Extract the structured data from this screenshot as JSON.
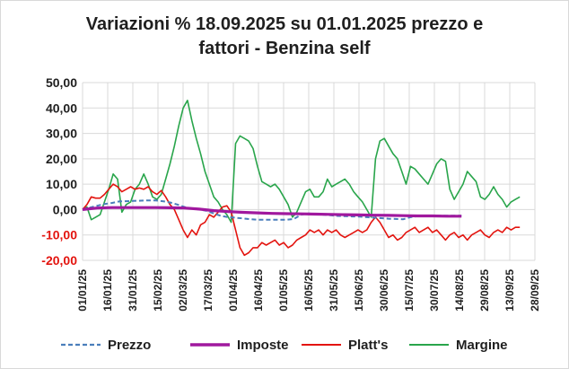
{
  "chart_data": {
    "type": "line",
    "title_line1": "Variazioni % 18.09.2025 su 01.01.2025 prezzo e",
    "title_line2": "fattori - Benzina self",
    "xlabel": "",
    "ylabel": "",
    "ylim": [
      -20,
      50
    ],
    "y_ticks": [
      "50,00",
      "40,00",
      "30,00",
      "20,00",
      "10,00",
      "0,00",
      "-10,00",
      "-20,00"
    ],
    "x_ticks": [
      "01/01/25",
      "16/01/25",
      "31/01/25",
      "15/02/25",
      "02/03/25",
      "17/03/25",
      "01/04/25",
      "16/04/25",
      "01/05/25",
      "16/05/25",
      "31/05/25",
      "15/06/25",
      "30/06/25",
      "15/07/25",
      "30/07/25",
      "14/08/25",
      "29/08/25",
      "13/09/25",
      "28/09/25"
    ],
    "grid": true,
    "legend_position": "bottom",
    "series": [
      {
        "name": "Prezzo",
        "color": "#4a7ebb",
        "style": "dashed",
        "points": [
          [
            0,
            0
          ],
          [
            5,
            0.8
          ],
          [
            10,
            1.5
          ],
          [
            15,
            2.2
          ],
          [
            20,
            2.6
          ],
          [
            25,
            3.2
          ],
          [
            30,
            3.3
          ],
          [
            35,
            3.4
          ],
          [
            40,
            3.5
          ],
          [
            45,
            3.6
          ],
          [
            50,
            3.6
          ],
          [
            55,
            3.3
          ],
          [
            60,
            2.8
          ],
          [
            65,
            2.0
          ],
          [
            70,
            1.0
          ],
          [
            75,
            0.5
          ],
          [
            80,
            0
          ],
          [
            85,
            -0.5
          ],
          [
            90,
            -1.5
          ],
          [
            95,
            -2.5
          ],
          [
            100,
            -3.0
          ],
          [
            105,
            -3.2
          ],
          [
            110,
            -3.5
          ],
          [
            115,
            -3.8
          ],
          [
            120,
            -4.0
          ],
          [
            125,
            -4.0
          ],
          [
            130,
            -4.0
          ],
          [
            135,
            -4.0
          ],
          [
            140,
            -4.0
          ],
          [
            145,
            -3.7
          ],
          [
            150,
            -2.0
          ],
          [
            155,
            -1.5
          ],
          [
            160,
            -1.8
          ],
          [
            165,
            -2.0
          ],
          [
            170,
            -2.2
          ],
          [
            175,
            -2.5
          ],
          [
            180,
            -2.6
          ],
          [
            185,
            -2.7
          ],
          [
            190,
            -2.8
          ],
          [
            195,
            -3.0
          ],
          [
            200,
            -3.2
          ],
          [
            205,
            -3.4
          ],
          [
            210,
            -3.6
          ],
          [
            215,
            -3.7
          ],
          [
            220,
            -3.8
          ],
          [
            225,
            -3.0
          ],
          [
            230,
            -2.6
          ],
          [
            235,
            -2.5
          ],
          [
            240,
            -2.4
          ],
          [
            245,
            -2.4
          ],
          [
            250,
            -2.4
          ],
          [
            255,
            -2.4
          ],
          [
            260,
            -2.4
          ]
        ]
      },
      {
        "name": "Imposte",
        "color": "#a0189e",
        "style": "solid",
        "points": [
          [
            0,
            0
          ],
          [
            10,
            0.6
          ],
          [
            20,
            0.8
          ],
          [
            30,
            0.8
          ],
          [
            40,
            0.8
          ],
          [
            50,
            0.8
          ],
          [
            60,
            0.7
          ],
          [
            70,
            0.6
          ],
          [
            80,
            0.2
          ],
          [
            90,
            -0.4
          ],
          [
            100,
            -0.8
          ],
          [
            110,
            -1.1
          ],
          [
            120,
            -1.3
          ],
          [
            130,
            -1.5
          ],
          [
            140,
            -1.6
          ],
          [
            150,
            -1.7
          ],
          [
            160,
            -1.8
          ],
          [
            170,
            -1.9
          ],
          [
            180,
            -2.0
          ],
          [
            190,
            -2.1
          ],
          [
            200,
            -2.2
          ],
          [
            210,
            -2.3
          ],
          [
            220,
            -2.4
          ],
          [
            230,
            -2.5
          ],
          [
            240,
            -2.5
          ],
          [
            250,
            -2.6
          ],
          [
            260,
            -2.6
          ]
        ]
      },
      {
        "name": "Platt's",
        "color": "#e3140f",
        "style": "solid",
        "points": [
          [
            0,
            0
          ],
          [
            3,
            2
          ],
          [
            6,
            5
          ],
          [
            9,
            4.5
          ],
          [
            12,
            4.5
          ],
          [
            15,
            6
          ],
          [
            18,
            8
          ],
          [
            21,
            10
          ],
          [
            24,
            9
          ],
          [
            27,
            7
          ],
          [
            30,
            8
          ],
          [
            33,
            9
          ],
          [
            36,
            8
          ],
          [
            39,
            8.5
          ],
          [
            42,
            8
          ],
          [
            45,
            9
          ],
          [
            48,
            7
          ],
          [
            51,
            6
          ],
          [
            54,
            7.5
          ],
          [
            57,
            5
          ],
          [
            60,
            2
          ],
          [
            63,
            0
          ],
          [
            66,
            -4
          ],
          [
            69,
            -8
          ],
          [
            72,
            -11
          ],
          [
            75,
            -8
          ],
          [
            78,
            -10
          ],
          [
            81,
            -6
          ],
          [
            84,
            -5
          ],
          [
            87,
            -2
          ],
          [
            90,
            -3
          ],
          [
            93,
            -1
          ],
          [
            96,
            1
          ],
          [
            99,
            1.5
          ],
          [
            102,
            -1
          ],
          [
            105,
            -8
          ],
          [
            108,
            -15
          ],
          [
            111,
            -18
          ],
          [
            114,
            -17
          ],
          [
            117,
            -15
          ],
          [
            120,
            -15
          ],
          [
            123,
            -13
          ],
          [
            126,
            -14
          ],
          [
            129,
            -13
          ],
          [
            132,
            -12
          ],
          [
            135,
            -14
          ],
          [
            138,
            -13
          ],
          [
            141,
            -15
          ],
          [
            144,
            -14
          ],
          [
            147,
            -12
          ],
          [
            150,
            -11
          ],
          [
            153,
            -10
          ],
          [
            156,
            -8
          ],
          [
            159,
            -9
          ],
          [
            162,
            -8
          ],
          [
            165,
            -10
          ],
          [
            168,
            -8
          ],
          [
            171,
            -9
          ],
          [
            174,
            -8
          ],
          [
            177,
            -10
          ],
          [
            180,
            -11
          ],
          [
            183,
            -10
          ],
          [
            186,
            -9
          ],
          [
            189,
            -8
          ],
          [
            192,
            -9
          ],
          [
            195,
            -8
          ],
          [
            198,
            -5
          ],
          [
            201,
            -3
          ],
          [
            204,
            -5
          ],
          [
            207,
            -8
          ],
          [
            210,
            -11
          ],
          [
            213,
            -10
          ],
          [
            216,
            -12
          ],
          [
            219,
            -11
          ],
          [
            222,
            -9
          ],
          [
            225,
            -8
          ],
          [
            228,
            -7
          ],
          [
            231,
            -9
          ],
          [
            234,
            -8
          ],
          [
            237,
            -7
          ],
          [
            240,
            -9
          ],
          [
            243,
            -8
          ],
          [
            246,
            -10
          ],
          [
            249,
            -12
          ],
          [
            252,
            -10
          ],
          [
            255,
            -9
          ],
          [
            258,
            -11
          ],
          [
            261,
            -10
          ],
          [
            264,
            -12
          ],
          [
            267,
            -10
          ],
          [
            270,
            -9
          ],
          [
            273,
            -8
          ],
          [
            276,
            -10
          ],
          [
            279,
            -11
          ],
          [
            282,
            -9
          ],
          [
            285,
            -8
          ],
          [
            288,
            -9
          ],
          [
            291,
            -7
          ],
          [
            294,
            -8
          ],
          [
            297,
            -7
          ],
          [
            300,
            -7
          ]
        ]
      },
      {
        "name": "Margine",
        "color": "#29a54b",
        "style": "solid",
        "points": [
          [
            0,
            0
          ],
          [
            3,
            1
          ],
          [
            6,
            -4
          ],
          [
            9,
            -3
          ],
          [
            12,
            -2
          ],
          [
            15,
            3
          ],
          [
            18,
            8
          ],
          [
            21,
            14
          ],
          [
            24,
            12
          ],
          [
            27,
            -1
          ],
          [
            30,
            2
          ],
          [
            33,
            3
          ],
          [
            36,
            8
          ],
          [
            39,
            10
          ],
          [
            42,
            14
          ],
          [
            45,
            10
          ],
          [
            48,
            5
          ],
          [
            51,
            4
          ],
          [
            54,
            6
          ],
          [
            57,
            12
          ],
          [
            60,
            18
          ],
          [
            63,
            25
          ],
          [
            66,
            33
          ],
          [
            69,
            40
          ],
          [
            72,
            43
          ],
          [
            75,
            35
          ],
          [
            78,
            28
          ],
          [
            81,
            22
          ],
          [
            84,
            15
          ],
          [
            87,
            10
          ],
          [
            90,
            5
          ],
          [
            93,
            3
          ],
          [
            96,
            0
          ],
          [
            99,
            -2
          ],
          [
            102,
            -5
          ],
          [
            105,
            26
          ],
          [
            108,
            29
          ],
          [
            111,
            28
          ],
          [
            114,
            27
          ],
          [
            117,
            24
          ],
          [
            120,
            17
          ],
          [
            123,
            11
          ],
          [
            126,
            10
          ],
          [
            129,
            9
          ],
          [
            132,
            10
          ],
          [
            135,
            8
          ],
          [
            138,
            5
          ],
          [
            141,
            2
          ],
          [
            144,
            -3
          ],
          [
            147,
            -1
          ],
          [
            150,
            3
          ],
          [
            153,
            7
          ],
          [
            156,
            8
          ],
          [
            159,
            5
          ],
          [
            162,
            5
          ],
          [
            165,
            7
          ],
          [
            168,
            12
          ],
          [
            171,
            9
          ],
          [
            174,
            10
          ],
          [
            177,
            11
          ],
          [
            180,
            12
          ],
          [
            183,
            10
          ],
          [
            186,
            7
          ],
          [
            189,
            5
          ],
          [
            192,
            3
          ],
          [
            195,
            0
          ],
          [
            198,
            -3
          ],
          [
            201,
            20
          ],
          [
            204,
            27
          ],
          [
            207,
            28
          ],
          [
            210,
            25
          ],
          [
            213,
            22
          ],
          [
            216,
            20
          ],
          [
            219,
            15
          ],
          [
            222,
            10
          ],
          [
            225,
            17
          ],
          [
            228,
            16
          ],
          [
            231,
            14
          ],
          [
            234,
            12
          ],
          [
            237,
            10
          ],
          [
            240,
            14
          ],
          [
            243,
            18
          ],
          [
            246,
            20
          ],
          [
            249,
            19
          ],
          [
            252,
            8
          ],
          [
            255,
            4
          ],
          [
            258,
            7
          ],
          [
            261,
            10
          ],
          [
            264,
            15
          ],
          [
            267,
            13
          ],
          [
            270,
            11
          ],
          [
            273,
            5
          ],
          [
            276,
            4
          ],
          [
            279,
            6
          ],
          [
            282,
            9
          ],
          [
            285,
            6
          ],
          [
            288,
            4
          ],
          [
            291,
            1
          ],
          [
            294,
            3
          ],
          [
            297,
            4
          ],
          [
            300,
            5
          ]
        ]
      }
    ]
  }
}
